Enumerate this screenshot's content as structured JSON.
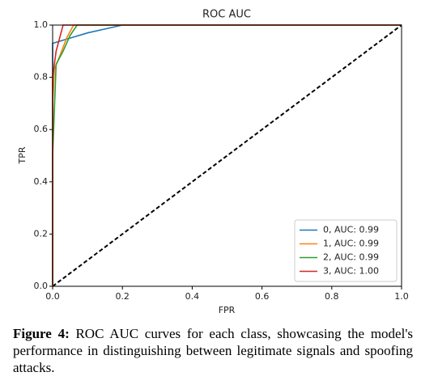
{
  "chart_data": {
    "type": "line",
    "title": "ROC AUC",
    "xlabel": "FPR",
    "ylabel": "TPR",
    "xlim": [
      0,
      1
    ],
    "ylim": [
      0,
      1
    ],
    "xticks": [
      {
        "value": 0,
        "label": "0.0"
      },
      0.2,
      0.4,
      0.6,
      0.8,
      {
        "value": 1,
        "label": "1.0"
      }
    ],
    "yticks": [
      {
        "value": 0,
        "label": "0.0"
      },
      0.2,
      0.4,
      0.6,
      0.8,
      {
        "value": 1,
        "label": "1.0"
      }
    ],
    "legend": "lower right",
    "series": [
      {
        "name": "0, AUC: 0.99",
        "color": "#1f77b4",
        "x": [
          0,
          0,
          0.05,
          0.1,
          0.15,
          0.2,
          1
        ],
        "y": [
          0,
          0.93,
          0.95,
          0.97,
          0.985,
          1,
          1
        ]
      },
      {
        "name": "1, AUC: 0.99",
        "color": "#ff7f0e",
        "x": [
          0,
          0,
          0.005,
          0.02,
          0.04,
          0.06,
          1
        ],
        "y": [
          0,
          0.7,
          0.83,
          0.88,
          0.95,
          1,
          1
        ]
      },
      {
        "name": "2, AUC: 0.99",
        "color": "#2ca02c",
        "x": [
          0,
          0,
          0.01,
          0.03,
          0.05,
          0.07,
          1
        ],
        "y": [
          0,
          0.5,
          0.85,
          0.9,
          0.96,
          1,
          1
        ]
      },
      {
        "name": "3, AUC: 1.00",
        "color": "#d62728",
        "x": [
          0,
          0,
          0.01,
          0.03,
          1
        ],
        "y": [
          0,
          0.8,
          0.9,
          1,
          1
        ]
      }
    ],
    "diagonal": {
      "x": [
        0,
        1
      ],
      "y": [
        0,
        1
      ],
      "color": "#000000"
    }
  },
  "caption": {
    "label": "Figure 4:",
    "text": "ROC AUC curves for each class, showcasing the model's performance in distinguishing between legitimate signals and spoofing attacks."
  }
}
